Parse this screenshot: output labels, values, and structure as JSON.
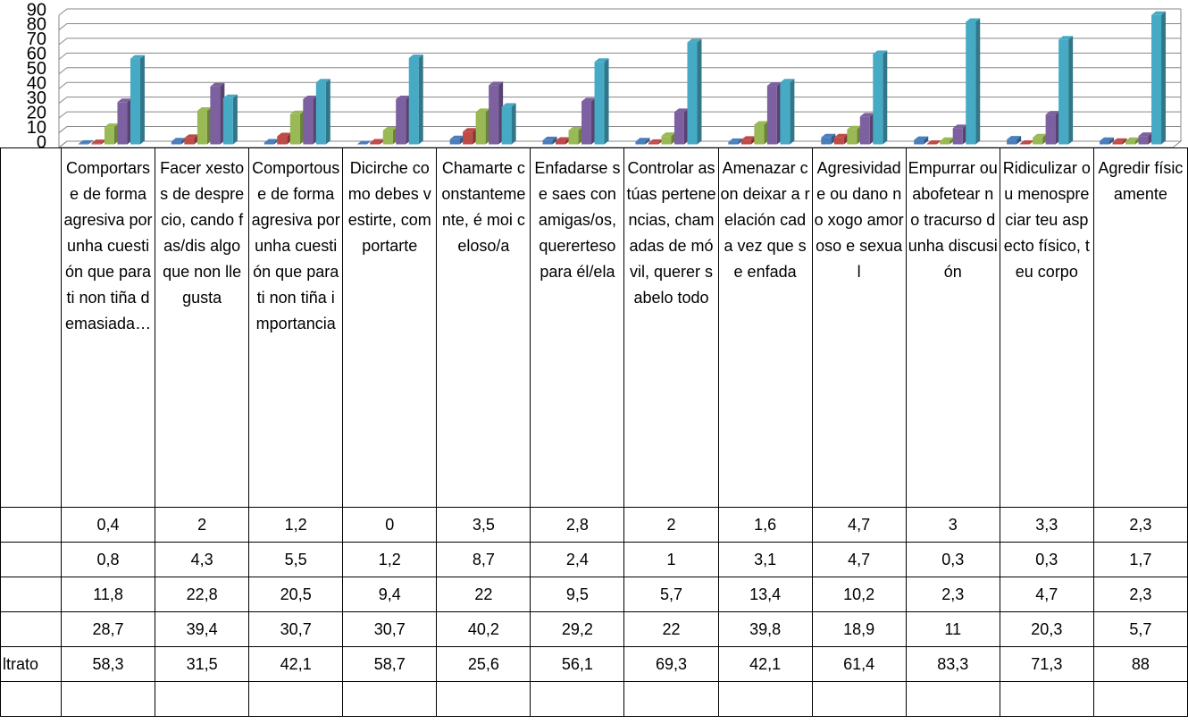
{
  "chart_data": {
    "type": "bar3d",
    "categories": [
      "Comportarse de forma agresiva por unha cuestión que para ti non tiña demasiada…",
      "Facer xestos de desprecio, cando fas/dis algo que non lle gusta",
      "Comportouse de forma agresiva por unha cuestión que para ti non tiña importancia",
      "Dicirche como debes vestirte, comportarte",
      "Chamarte constantemente, é moi celoso/a",
      "Enfadarse se saes con amigas/os, quererteso para él/ela",
      "Controlar as túas pertenencias, chamadas de móvil, querer sabelo todo",
      "Amenazar con deixar a relación cada vez que se enfada",
      "Agresividade ou dano no xogo amoroso e sexual",
      "Empurrar ou abofetear no tracurso dunha discusión",
      "Ridiculizar ou menospreciar teu aspecto físico, teu corpo",
      "Agredir físicamente"
    ],
    "series": [
      {
        "color": "#4a7ebb",
        "values": [
          0.4,
          2,
          1.2,
          0,
          3.5,
          2.8,
          2,
          1.6,
          4.7,
          3,
          3.3,
          2.3
        ],
        "value_labels": [
          "0,4",
          "2",
          "1,2",
          "0",
          "3,5",
          "2,8",
          "2",
          "1,6",
          "4,7",
          "3",
          "3,3",
          "2,3"
        ]
      },
      {
        "color": "#be4b48",
        "values": [
          0.8,
          4.3,
          5.5,
          1.2,
          8.7,
          2.4,
          1,
          3.1,
          4.7,
          0.3,
          0.3,
          1.7
        ],
        "value_labels": [
          "0,8",
          "4,3",
          "5,5",
          "1,2",
          "8,7",
          "2,4",
          "1",
          "3,1",
          "4,7",
          "0,3",
          "0,3",
          "1,7"
        ]
      },
      {
        "color": "#98b954",
        "values": [
          11.8,
          22.8,
          20.5,
          9.4,
          22,
          9.5,
          5.7,
          13.4,
          10.2,
          2.3,
          4.7,
          2.3
        ],
        "value_labels": [
          "11,8",
          "22,8",
          "20,5",
          "9,4",
          "22",
          "9,5",
          "5,7",
          "13,4",
          "10,2",
          "2,3",
          "4,7",
          "2,3"
        ]
      },
      {
        "color": "#7d60a0",
        "values": [
          28.7,
          39.4,
          30.7,
          30.7,
          40.2,
          29.2,
          22,
          39.8,
          18.9,
          11,
          20.3,
          5.7
        ],
        "value_labels": [
          "28,7",
          "39,4",
          "30,7",
          "30,7",
          "40,2",
          "29,2",
          "22",
          "39,8",
          "18,9",
          "11",
          "20,3",
          "5,7"
        ]
      },
      {
        "name": "ltrato",
        "color": "#46aac5",
        "values": [
          58.3,
          31.5,
          42.1,
          58.7,
          25.6,
          56.1,
          69.3,
          42.1,
          61.4,
          83.3,
          71.3,
          88
        ],
        "value_labels": [
          "58,3",
          "31,5",
          "42,1",
          "58,7",
          "25,6",
          "56,1",
          "69,3",
          "42,1",
          "61,4",
          "83,3",
          "71,3",
          "88"
        ]
      }
    ],
    "ylim": [
      0,
      90
    ],
    "yticks": [
      0,
      10,
      20,
      30,
      40,
      50,
      60,
      70,
      80,
      90
    ],
    "grid": true
  }
}
